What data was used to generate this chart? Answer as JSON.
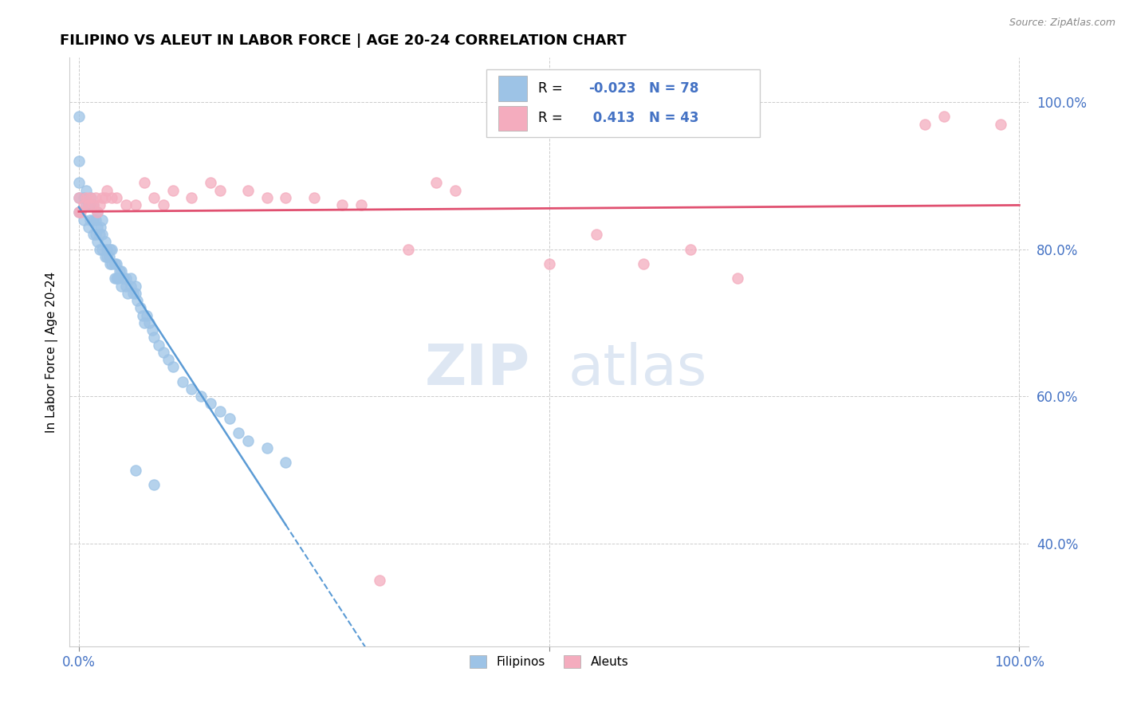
{
  "title": "FILIPINO VS ALEUT IN LABOR FORCE | AGE 20-24 CORRELATION CHART",
  "source": "Source: ZipAtlas.com",
  "ylabel": "In Labor Force | Age 20-24",
  "xlim": [
    -0.01,
    1.01
  ],
  "ylim": [
    0.26,
    1.06
  ],
  "xtick_positions": [
    0.0,
    0.5,
    1.0
  ],
  "xticklabels": [
    "0.0%",
    "",
    "100.0%"
  ],
  "ytick_positions": [
    0.4,
    0.6,
    0.8,
    1.0
  ],
  "ytick_labels": [
    "40.0%",
    "60.0%",
    "80.0%",
    "100.0%"
  ],
  "r_filipino": -0.023,
  "n_filipino": 78,
  "r_aleut": 0.413,
  "n_aleut": 43,
  "filipino_color": "#9DC3E6",
  "aleut_color": "#F4ACBE",
  "trendline_filipino_color": "#5B9BD5",
  "trendline_aleut_color": "#E05070",
  "watermark_zip": "ZIP",
  "watermark_atlas": "atlas",
  "filipino_scatter_x": [
    0.0,
    0.0,
    0.0,
    0.0,
    0.0,
    0.005,
    0.005,
    0.008,
    0.008,
    0.01,
    0.01,
    0.012,
    0.012,
    0.013,
    0.015,
    0.015,
    0.015,
    0.018,
    0.018,
    0.02,
    0.02,
    0.02,
    0.022,
    0.022,
    0.023,
    0.025,
    0.025,
    0.025,
    0.028,
    0.028,
    0.03,
    0.03,
    0.032,
    0.033,
    0.033,
    0.035,
    0.035,
    0.038,
    0.038,
    0.04,
    0.04,
    0.042,
    0.043,
    0.045,
    0.045,
    0.048,
    0.05,
    0.05,
    0.052,
    0.055,
    0.055,
    0.058,
    0.06,
    0.06,
    0.062,
    0.065,
    0.068,
    0.07,
    0.072,
    0.075,
    0.078,
    0.08,
    0.085,
    0.09,
    0.095,
    0.1,
    0.11,
    0.12,
    0.13,
    0.14,
    0.15,
    0.16,
    0.17,
    0.18,
    0.2,
    0.22,
    0.06,
    0.08
  ],
  "filipino_scatter_y": [
    0.85,
    0.87,
    0.89,
    0.92,
    0.98,
    0.84,
    0.87,
    0.86,
    0.88,
    0.83,
    0.86,
    0.84,
    0.86,
    0.87,
    0.82,
    0.84,
    0.86,
    0.82,
    0.84,
    0.81,
    0.83,
    0.85,
    0.8,
    0.82,
    0.83,
    0.8,
    0.82,
    0.84,
    0.79,
    0.81,
    0.79,
    0.8,
    0.79,
    0.78,
    0.8,
    0.78,
    0.8,
    0.78,
    0.76,
    0.76,
    0.78,
    0.76,
    0.77,
    0.75,
    0.77,
    0.76,
    0.75,
    0.76,
    0.74,
    0.75,
    0.76,
    0.74,
    0.74,
    0.75,
    0.73,
    0.72,
    0.71,
    0.7,
    0.71,
    0.7,
    0.69,
    0.68,
    0.67,
    0.66,
    0.65,
    0.64,
    0.62,
    0.61,
    0.6,
    0.59,
    0.58,
    0.57,
    0.55,
    0.54,
    0.53,
    0.51,
    0.5,
    0.48
  ],
  "aleut_scatter_x": [
    0.0,
    0.0,
    0.002,
    0.005,
    0.008,
    0.01,
    0.012,
    0.015,
    0.018,
    0.02,
    0.022,
    0.025,
    0.028,
    0.03,
    0.035,
    0.04,
    0.05,
    0.06,
    0.07,
    0.08,
    0.09,
    0.1,
    0.12,
    0.14,
    0.15,
    0.18,
    0.2,
    0.22,
    0.25,
    0.28,
    0.3,
    0.32,
    0.35,
    0.38,
    0.4,
    0.5,
    0.55,
    0.6,
    0.65,
    0.7,
    0.9,
    0.92,
    0.98
  ],
  "aleut_scatter_y": [
    0.85,
    0.87,
    0.85,
    0.86,
    0.87,
    0.86,
    0.87,
    0.86,
    0.87,
    0.85,
    0.86,
    0.87,
    0.87,
    0.88,
    0.87,
    0.87,
    0.86,
    0.86,
    0.89,
    0.87,
    0.86,
    0.88,
    0.87,
    0.89,
    0.88,
    0.88,
    0.87,
    0.87,
    0.87,
    0.86,
    0.86,
    0.35,
    0.8,
    0.89,
    0.88,
    0.78,
    0.82,
    0.78,
    0.8,
    0.76,
    0.97,
    0.98,
    0.97
  ]
}
